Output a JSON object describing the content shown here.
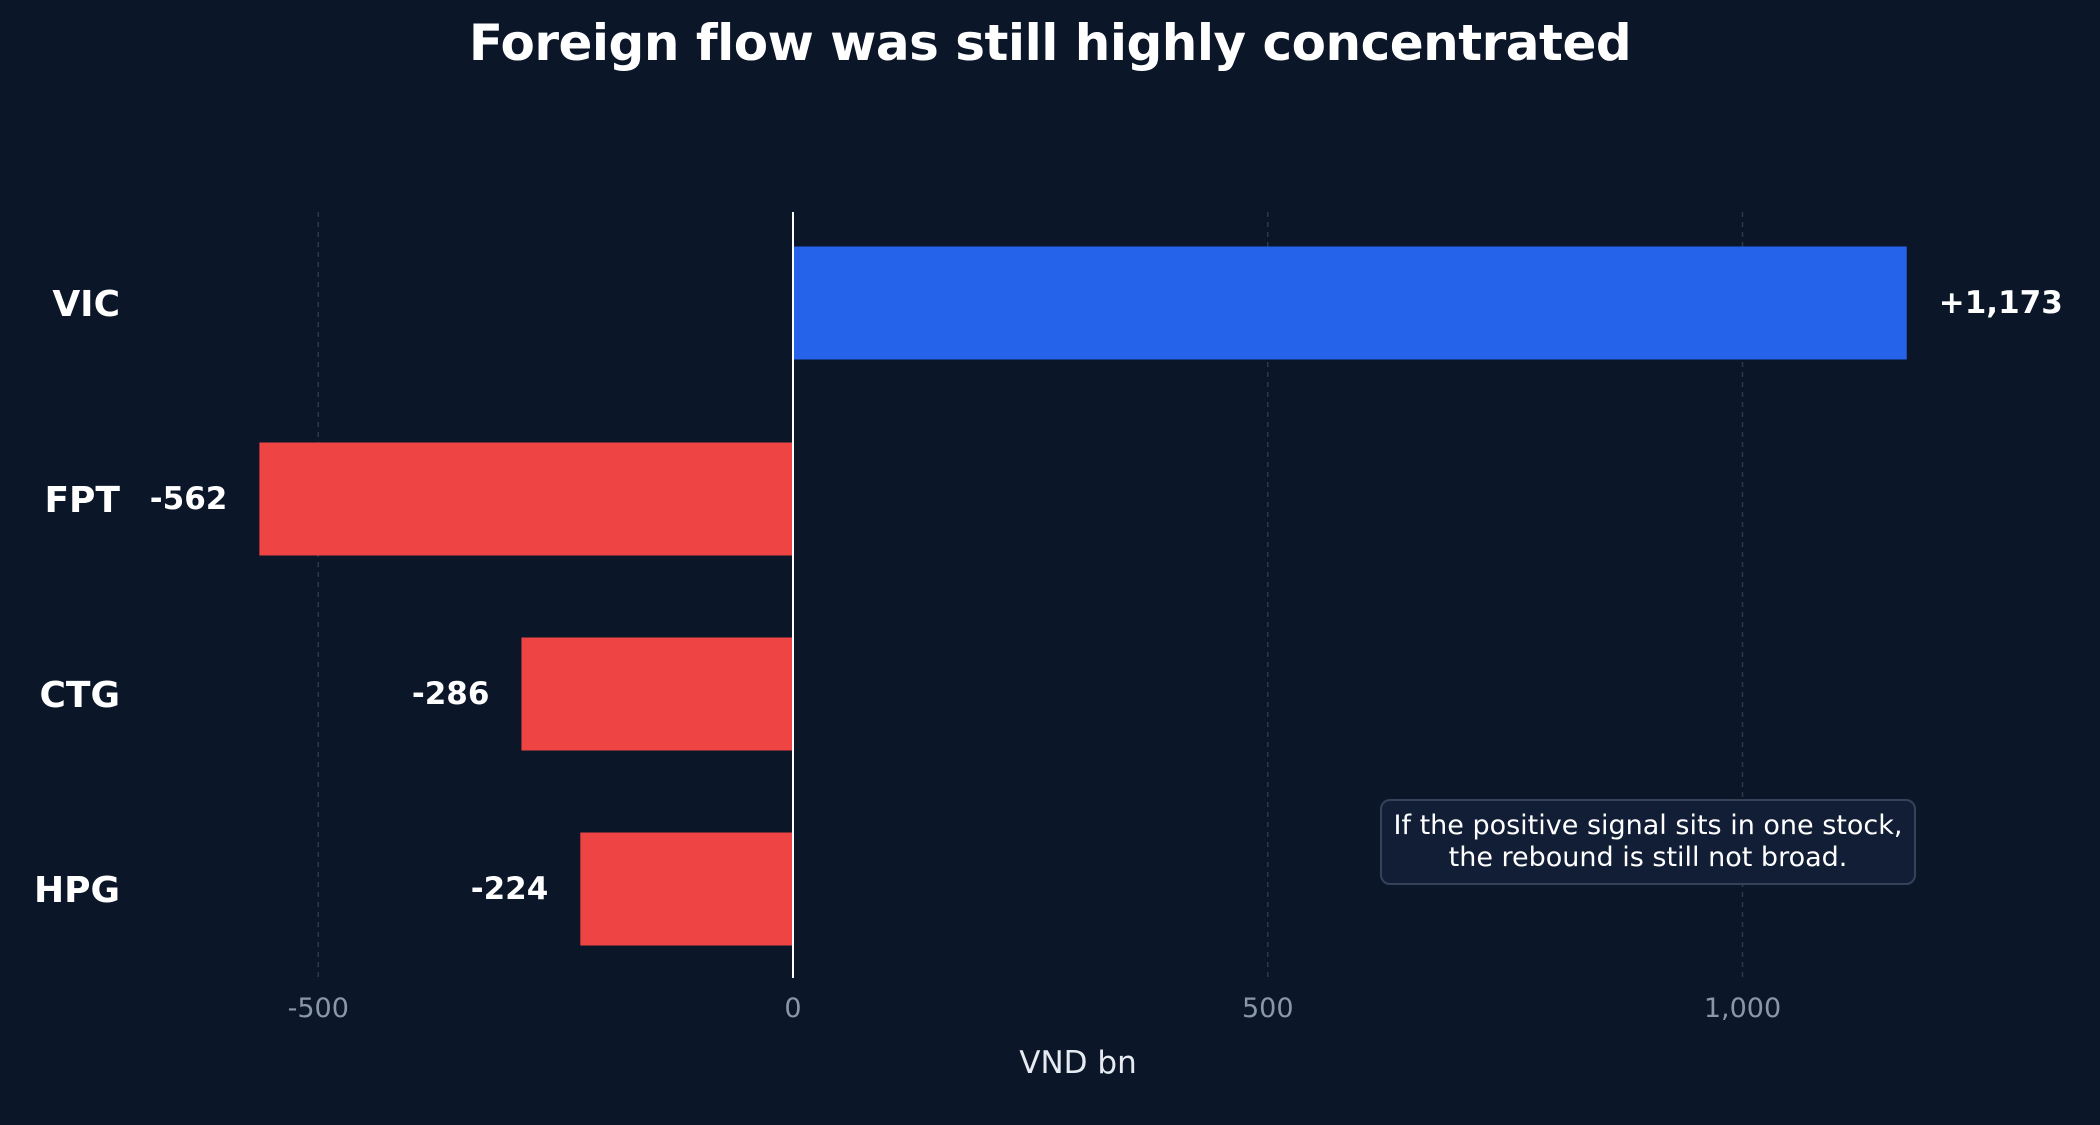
{
  "chart_data": {
    "type": "bar",
    "orientation": "horizontal",
    "title": "Foreign flow was still highly concentrated",
    "xlabel": "VND bn",
    "ylabel": "",
    "categories": [
      "VIC",
      "FPT",
      "CTG",
      "HPG"
    ],
    "values": [
      1173,
      -562,
      -286,
      -224
    ],
    "value_labels": [
      "+1,173",
      "-562",
      "-286",
      "-224"
    ],
    "xlim": [
      -750,
      1380
    ],
    "x_ticks": [
      -500,
      0,
      500,
      1000
    ],
    "x_tick_labels": [
      "-500",
      "0",
      "500",
      "1,000"
    ],
    "grid": true,
    "colors": {
      "background": "#0b1628",
      "positive": "#2563eb",
      "negative": "#ef4444",
      "grid": "#2a3850",
      "zero_line": "#ffffff"
    },
    "annotation": {
      "line1": "If the positive signal sits in one stock,",
      "line2": "the rebound is still not broad."
    }
  }
}
